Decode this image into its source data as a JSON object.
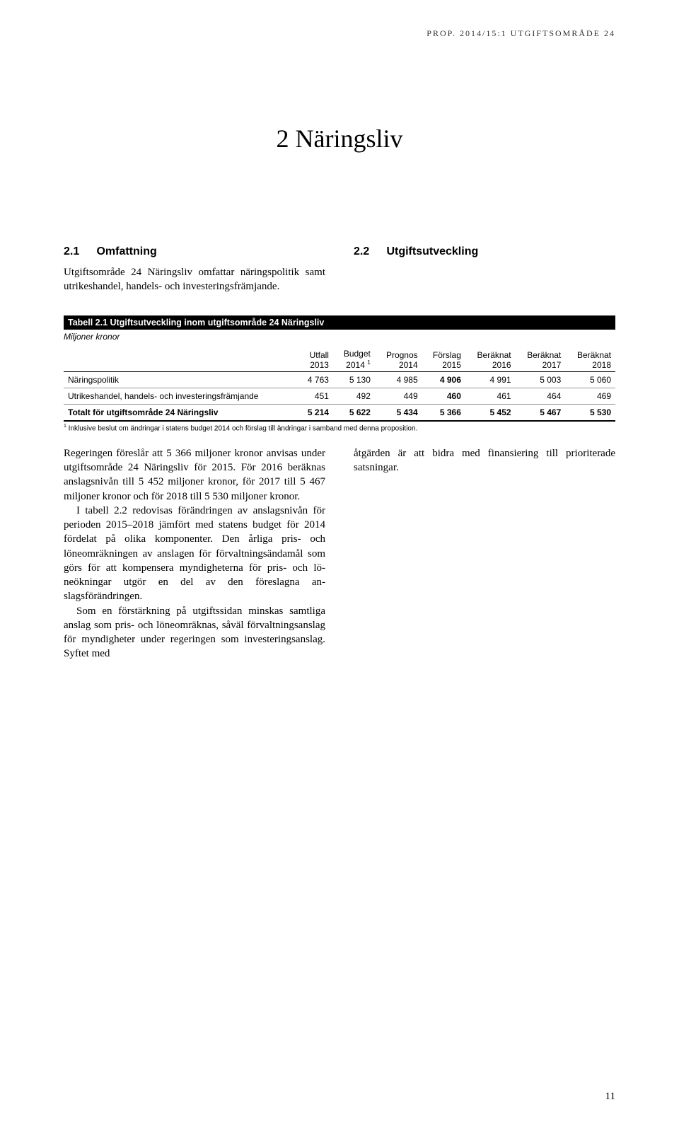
{
  "running_head": "PROP. 2014/15:1 UTGIFTSOMRÅDE 24",
  "chapter_title": "2 Näringsliv",
  "section1": {
    "num": "2.1",
    "title": "Omfattning"
  },
  "section1_body": "Utgiftsområde 24 Näringsliv omfattar närings­politik samt utrikeshandel, handels- och investe­ringsfrämjande.",
  "section2": {
    "num": "2.2",
    "title": "Utgiftsutveckling"
  },
  "table": {
    "title": "Tabell 2.1 Utgiftsutveckling inom utgiftsområde 24 Näringsliv",
    "subtitle": "Miljoner kronor",
    "columns": [
      {
        "l1": "",
        "l2": ""
      },
      {
        "l1": "Utfall",
        "l2": "2013"
      },
      {
        "l1": "Budget",
        "l2": "2014 ",
        "sup": "1"
      },
      {
        "l1": "Prognos",
        "l2": "2014"
      },
      {
        "l1": "Förslag",
        "l2": "2015",
        "bold": true
      },
      {
        "l1": "Beräknat",
        "l2": "2016"
      },
      {
        "l1": "Beräknat",
        "l2": "2017"
      },
      {
        "l1": "Beräknat",
        "l2": "2018"
      }
    ],
    "rows": [
      {
        "label": "Näringspolitik",
        "cells": [
          "4 763",
          "5 130",
          "4 985",
          "4 906",
          "4 991",
          "5 003",
          "5 060"
        ]
      },
      {
        "label": "Utrikeshandel, handels- och investeringsfrämjande",
        "cells": [
          "451",
          "492",
          "449",
          "460",
          "461",
          "464",
          "469"
        ]
      }
    ],
    "total": {
      "label": "Totalt för utgiftsområde 24 Näringsliv",
      "cells": [
        "5 214",
        "5 622",
        "5 434",
        "5 366",
        "5 452",
        "5 467",
        "5 530"
      ]
    },
    "footnote_sup": "1",
    "footnote": " Inklusive beslut om ändringar i statens budget 2014 och förslag till ändringar i samband med denna proposition."
  },
  "lower_left": {
    "p1": "Regeringen föreslår att 5 366 miljoner kronor anvisas under utgiftsområde 24 Näringsliv för 2015. För 2016 beräknas anslagsnivån till 5 452 miljoner kronor, för 2017 till 5 467 miljoner kronor och för 2018 till 5 530 miljoner kronor.",
    "p2": "I tabell 2.2 redovisas förändringen av anslags­nivån för perioden 2015–2018 jämfört med sta­tens budget för 2014 fördelat på olika kompo­nenter. Den årliga pris- och löneomräkningen av anslagen för förvaltningsändamål som görs för att kompensera myndigheterna för pris- och lö­neökningar utgör en del av den föreslagna an­slagsförändringen.",
    "p3": "Som en förstärkning på utgiftssidan minskas samtliga anslag som pris- och löneomräknas, såväl förvaltningsanslag för myndigheter under regeringen som investeringsanslag. Syftet med"
  },
  "lower_right": {
    "p1": "åtgärden är att bidra med finansiering till priori­terade satsningar."
  },
  "page_number": "11"
}
